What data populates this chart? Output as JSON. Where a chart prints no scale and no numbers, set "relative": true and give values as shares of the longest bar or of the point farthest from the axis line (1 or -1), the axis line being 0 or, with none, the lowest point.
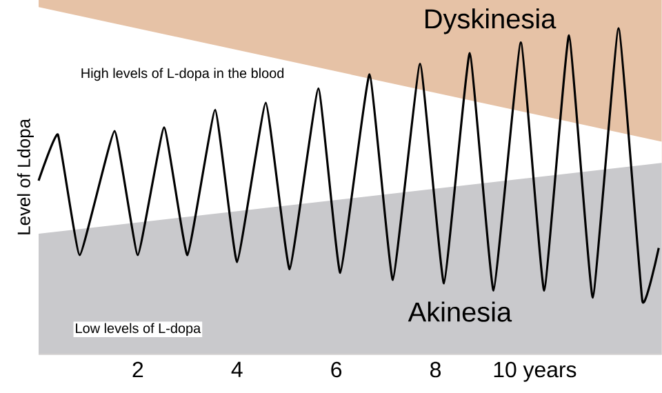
{
  "chart_data": {
    "type": "line",
    "relative": true,
    "ylabel": "Level of Ldopa",
    "xlim": [
      0,
      12.56
    ],
    "xticks": [
      2,
      4,
      6,
      8,
      {
        "value": 10,
        "label": "10 years"
      }
    ],
    "annotations": [
      "High levels of L-dopa in the blood",
      "Low levels of L-dopa"
    ],
    "series": [
      {
        "type": "area",
        "name": "Dyskinesia",
        "color": "#e6c2a6",
        "x": [
          0,
          12.56
        ],
        "values": [
          1,
          1
        ]
      },
      {
        "type": "area",
        "color": "#ffffff",
        "x": [
          0,
          12.56
        ],
        "values": [
          0.98,
          0.6
        ]
      },
      {
        "type": "area",
        "name": "Akinesia",
        "color": "#c9c9cc",
        "x": [
          0,
          12.56
        ],
        "values": [
          0.34,
          0.54
        ]
      },
      {
        "color": "#000000",
        "x": [
          0,
          0.39,
          0.83,
          1.53,
          2.0,
          2.53,
          3.0,
          3.56,
          4.0,
          4.58,
          5.06,
          5.64,
          6.08,
          6.67,
          7.14,
          7.69,
          8.17,
          8.69,
          9.17,
          9.72,
          10.19,
          10.69,
          11.17,
          11.69,
          12.17,
          12.5
        ],
        "values": [
          0.49,
          0.62,
          0.28,
          0.63,
          0.28,
          0.64,
          0.28,
          0.69,
          0.26,
          0.71,
          0.24,
          0.75,
          0.23,
          0.79,
          0.21,
          0.82,
          0.2,
          0.85,
          0.18,
          0.88,
          0.18,
          0.9,
          0.16,
          0.92,
          0.15,
          0.3
        ]
      }
    ]
  }
}
